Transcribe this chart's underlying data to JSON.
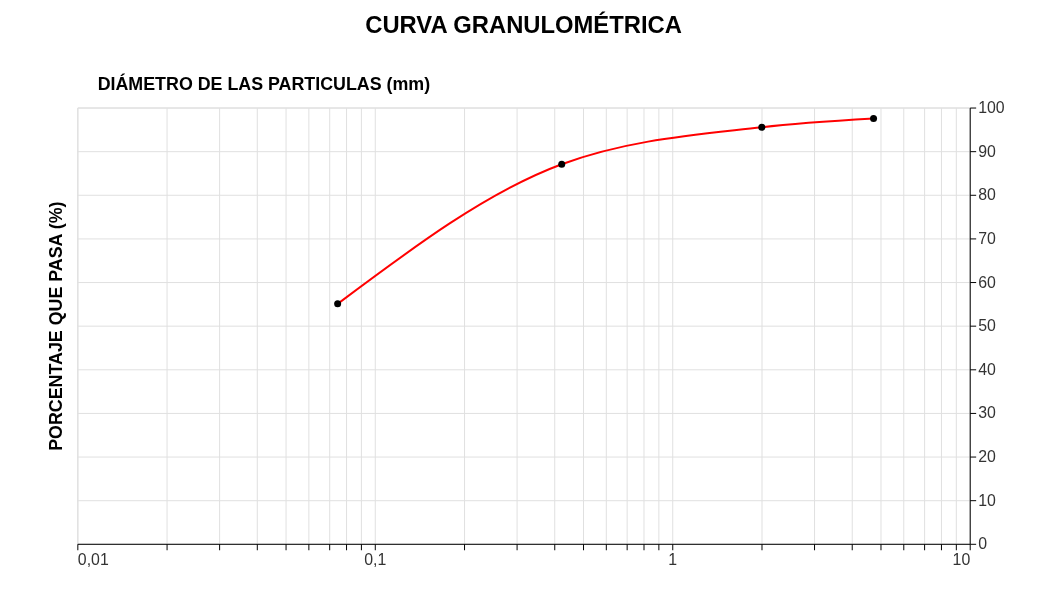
{
  "chart_data": {
    "type": "line",
    "title": "CURVA GRANULOMÉTRICA",
    "xlabel": "DIÁMETRO DE LAS PARTICULAS (mm)",
    "ylabel": "PORCENTAJE QUE PASA (%)",
    "x": [
      0.075,
      0.425,
      2.0,
      4.75
    ],
    "series": [
      {
        "type": "line",
        "color": "#ff0000",
        "values": [
          55,
          87,
          95.5,
          97.5
        ],
        "marker": "none"
      },
      {
        "type": "scatter",
        "color": "#000000",
        "values": [
          55,
          87,
          95.5,
          97.5
        ],
        "marker": "circle"
      }
    ],
    "log": "x",
    "xlim": [
      0.01,
      10
    ],
    "ylim": [
      0,
      100
    ],
    "xticks": [
      {
        "value": 0.01,
        "label": "0,01"
      },
      {
        "value": 0.02,
        "label": null
      },
      {
        "value": 0.03,
        "label": null
      },
      {
        "value": 0.04,
        "label": null
      },
      {
        "value": 0.05,
        "label": null
      },
      {
        "value": 0.06,
        "label": null
      },
      {
        "value": 0.07,
        "label": null
      },
      {
        "value": 0.08,
        "label": null
      },
      {
        "value": 0.09,
        "label": null
      },
      {
        "value": 0.1,
        "label": "0,1"
      },
      {
        "value": 0.2,
        "label": null
      },
      {
        "value": 0.3,
        "label": null
      },
      {
        "value": 0.4,
        "label": null
      },
      {
        "value": 0.5,
        "label": null
      },
      {
        "value": 0.6,
        "label": null
      },
      {
        "value": 0.7,
        "label": null
      },
      {
        "value": 0.8,
        "label": null
      },
      {
        "value": 0.9,
        "label": null
      },
      1,
      {
        "value": 2,
        "label": null
      },
      {
        "value": 3,
        "label": null
      },
      {
        "value": 4,
        "label": null
      },
      {
        "value": 5,
        "label": null
      },
      {
        "value": 6,
        "label": null
      },
      {
        "value": 7,
        "label": null
      },
      {
        "value": 8,
        "label": null
      },
      {
        "value": 9,
        "label": null
      },
      10
    ],
    "yticks": [
      0,
      10,
      20,
      30,
      40,
      50,
      60,
      70,
      80,
      90,
      100
    ],
    "grid": true
  }
}
